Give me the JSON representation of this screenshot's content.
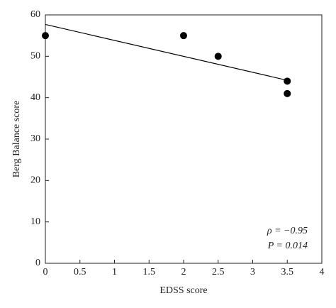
{
  "chart_data": {
    "type": "scatter",
    "xlabel": "EDSS score",
    "ylabel": "Berg Balance score",
    "series": [
      {
        "color": "#000000",
        "x": [
          0,
          2,
          2.5,
          3.5,
          3.5
        ],
        "y": [
          55,
          55,
          50,
          44,
          41
        ]
      }
    ],
    "trend_line": {
      "color": "#000000",
      "x": [
        0,
        3.5
      ],
      "y": [
        57.7,
        44.2
      ]
    },
    "annotations": [
      "ρ = −0.95",
      "P = 0.014"
    ],
    "xlim": [
      0,
      4
    ],
    "xticks": [
      0,
      0.5,
      1,
      1.5,
      2,
      2.5,
      3,
      3.5,
      4
    ],
    "ylim": [
      0,
      60
    ],
    "yticks": [
      0,
      10,
      20,
      30,
      40,
      50,
      60
    ]
  }
}
